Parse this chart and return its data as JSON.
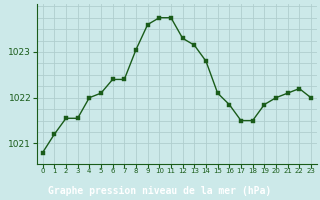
{
  "x": [
    0,
    1,
    2,
    3,
    4,
    5,
    6,
    7,
    8,
    9,
    10,
    11,
    12,
    13,
    14,
    15,
    16,
    17,
    18,
    19,
    20,
    21,
    22,
    23
  ],
  "y": [
    1020.8,
    1021.2,
    1021.55,
    1021.55,
    1022.0,
    1022.1,
    1022.4,
    1022.4,
    1023.05,
    1023.6,
    1023.75,
    1023.75,
    1023.3,
    1023.15,
    1022.8,
    1022.1,
    1021.85,
    1021.5,
    1021.5,
    1021.85,
    1022.0,
    1022.1,
    1022.2,
    1022.0
  ],
  "bg_color": "#cce9e9",
  "line_color": "#1a5c1a",
  "marker_color": "#1a5c1a",
  "grid_color": "#b0cece",
  "xlabel": "Graphe pression niveau de la mer (hPa)",
  "xlabel_bg": "#2d6b2d",
  "xlabel_fg": "#ffffff",
  "ylim": [
    1020.55,
    1024.05
  ],
  "yticks": [
    1021,
    1022,
    1023
  ],
  "xtick_labels": [
    "0",
    "1",
    "2",
    "3",
    "4",
    "5",
    "6",
    "7",
    "8",
    "9",
    "10",
    "11",
    "12",
    "13",
    "14",
    "15",
    "16",
    "17",
    "18",
    "19",
    "20",
    "21",
    "22",
    "23"
  ]
}
